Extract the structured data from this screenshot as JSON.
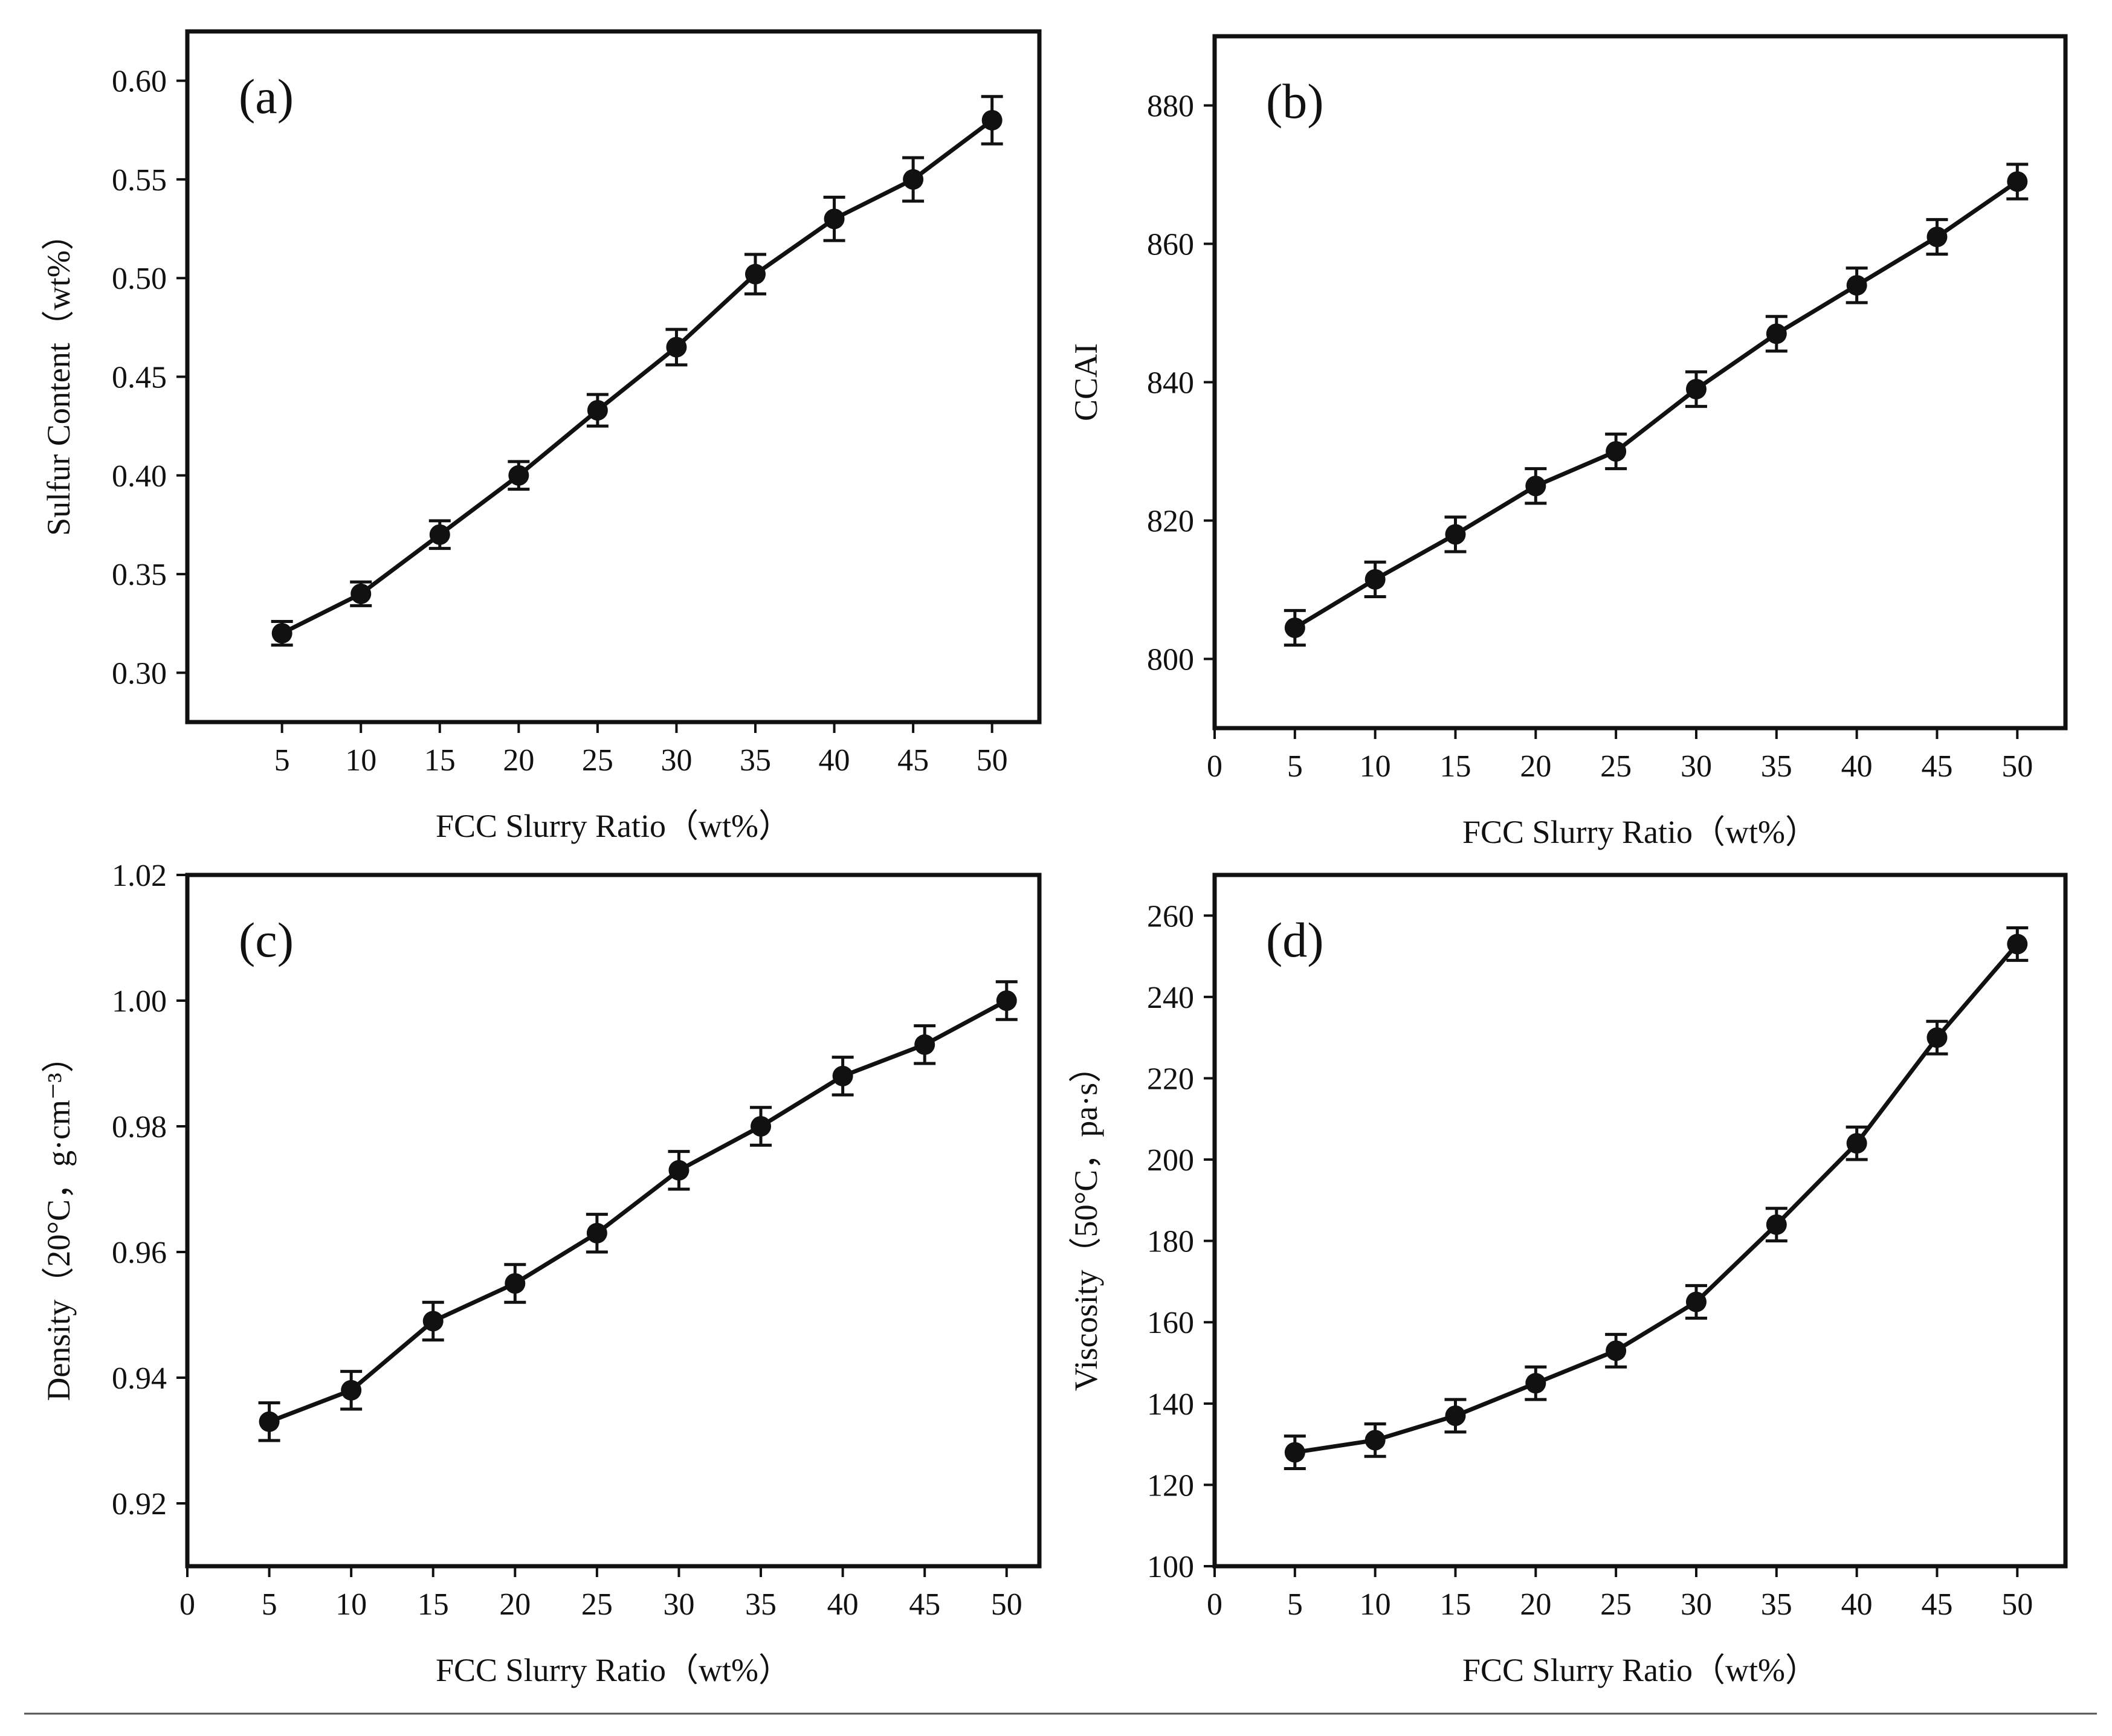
{
  "chart_data": [
    {
      "type": "line",
      "panel_label": "(a)",
      "xlabel": "FCC Slurry Ratio（wt%）",
      "ylabel": "Sulfur Content（wt%）",
      "x": [
        5,
        10,
        15,
        20,
        25,
        30,
        35,
        40,
        45,
        50
      ],
      "y": [
        0.32,
        0.34,
        0.37,
        0.4,
        0.433,
        0.465,
        0.502,
        0.53,
        0.55,
        0.58
      ],
      "error": [
        0.006,
        0.006,
        0.007,
        0.007,
        0.008,
        0.009,
        0.01,
        0.011,
        0.011,
        0.012
      ],
      "xlim": [
        -1,
        53
      ],
      "ylim": [
        0.275,
        0.625
      ],
      "xticks": [
        5,
        10,
        15,
        20,
        25,
        30,
        35,
        40,
        45,
        50
      ],
      "xtick_labels": [
        "5",
        "10",
        "15",
        "20",
        "25",
        "30",
        "35",
        "40",
        "45",
        "50"
      ],
      "yticks": [
        0.3,
        0.35,
        0.4,
        0.45,
        0.5,
        0.55,
        0.6
      ],
      "ytick_labels": [
        "0.30",
        "0.35",
        "0.40",
        "0.45",
        "0.50",
        "0.55",
        "0.60"
      ]
    },
    {
      "type": "line",
      "panel_label": "(b)",
      "xlabel": "FCC Slurry Ratio（wt%）",
      "ylabel": "CCAI",
      "x": [
        5,
        10,
        15,
        20,
        25,
        30,
        35,
        40,
        45,
        50
      ],
      "y": [
        804.5,
        811.5,
        818,
        825,
        830,
        839,
        847,
        854,
        861,
        869
      ],
      "error": [
        2.5,
        2.5,
        2.5,
        2.5,
        2.5,
        2.5,
        2.5,
        2.5,
        2.5,
        2.5
      ],
      "xlim": [
        0,
        53
      ],
      "ylim": [
        790,
        890
      ],
      "xticks": [
        0,
        5,
        10,
        15,
        20,
        25,
        30,
        35,
        40,
        45,
        50
      ],
      "xtick_labels": [
        "0",
        "5",
        "10",
        "15",
        "20",
        "25",
        "30",
        "35",
        "40",
        "45",
        "50"
      ],
      "yticks": [
        800,
        820,
        840,
        860,
        880
      ],
      "ytick_labels": [
        "800",
        "820",
        "840",
        "860",
        "880"
      ]
    },
    {
      "type": "line",
      "panel_label": "(c)",
      "xlabel": "FCC Slurry Ratio（wt%）",
      "ylabel": "Density（20°C，g·cm⁻³）",
      "x": [
        5,
        10,
        15,
        20,
        25,
        30,
        35,
        40,
        45,
        50
      ],
      "y": [
        0.933,
        0.938,
        0.949,
        0.955,
        0.963,
        0.973,
        0.98,
        0.988,
        0.993,
        1.0
      ],
      "error": [
        0.003,
        0.003,
        0.003,
        0.003,
        0.003,
        0.003,
        0.003,
        0.003,
        0.003,
        0.003
      ],
      "xlim": [
        0,
        52
      ],
      "ylim": [
        0.91,
        1.02
      ],
      "xticks": [
        0,
        5,
        10,
        15,
        20,
        25,
        30,
        35,
        40,
        45,
        50
      ],
      "xtick_labels": [
        "0",
        "5",
        "10",
        "15",
        "20",
        "25",
        "30",
        "35",
        "40",
        "45",
        "50"
      ],
      "yticks": [
        0.92,
        0.94,
        0.96,
        0.98,
        1.0,
        1.02
      ],
      "ytick_labels": [
        "0.92",
        "0.94",
        "0.96",
        "0.98",
        "1.00",
        "1.02"
      ]
    },
    {
      "type": "line",
      "panel_label": "(d)",
      "xlabel": "FCC Slurry Ratio（wt%）",
      "ylabel": "Viscosity（50°C，pa·s）",
      "x": [
        5,
        10,
        15,
        20,
        25,
        30,
        35,
        40,
        45,
        50
      ],
      "y": [
        128,
        131,
        137,
        145,
        153,
        165,
        184,
        204,
        230,
        253
      ],
      "error": [
        4,
        4,
        4,
        4,
        4,
        4,
        4,
        4,
        4,
        4
      ],
      "xlim": [
        0,
        53
      ],
      "ylim": [
        100,
        270
      ],
      "xticks": [
        0,
        5,
        10,
        15,
        20,
        25,
        30,
        35,
        40,
        45,
        50
      ],
      "xtick_labels": [
        "0",
        "5",
        "10",
        "15",
        "20",
        "25",
        "30",
        "35",
        "40",
        "45",
        "50"
      ],
      "yticks": [
        100,
        120,
        140,
        160,
        180,
        200,
        220,
        240,
        260
      ],
      "ytick_labels": [
        "100",
        "120",
        "140",
        "160",
        "180",
        "200",
        "220",
        "240",
        "260"
      ]
    }
  ]
}
